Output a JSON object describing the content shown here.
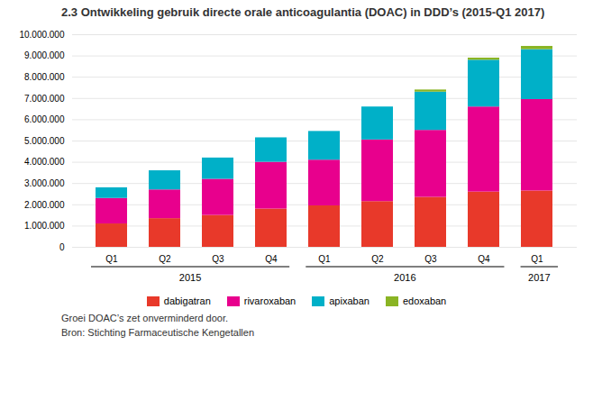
{
  "chart_data": {
    "type": "bar",
    "stacked": true,
    "title": "2.3 Ontwikkeling gebruik directe orale anticoagulantia (DOAC) in DDD’s (2015-Q1 2017)",
    "categories": [
      "Q1",
      "Q2",
      "Q3",
      "Q4",
      "Q1",
      "Q2",
      "Q3",
      "Q4",
      "Q1"
    ],
    "x_groups": [
      "2015",
      "2016",
      "2017"
    ],
    "series": [
      {
        "name": "dabigatran",
        "color": "#e8392a",
        "values": [
          1100000,
          1350000,
          1500000,
          1800000,
          1950000,
          2150000,
          2350000,
          2600000,
          2650000
        ]
      },
      {
        "name": "rivaroxaban",
        "color": "#e8008d",
        "values": [
          1200000,
          1350000,
          1700000,
          2200000,
          2150000,
          2900000,
          3150000,
          4000000,
          4300000
        ]
      },
      {
        "name": "apixaban",
        "color": "#00b0c8",
        "values": [
          500000,
          900000,
          1000000,
          1150000,
          1350000,
          1550000,
          1800000,
          2200000,
          2350000
        ]
      },
      {
        "name": "edoxaban",
        "color": "#8ab424",
        "values": [
          0,
          0,
          0,
          0,
          0,
          0,
          100000,
          100000,
          150000
        ]
      }
    ],
    "ylim": [
      0,
      10000000
    ],
    "yticks": [
      0,
      {
        "value": 1000000,
        "label": "1.000.000"
      },
      {
        "value": 2000000,
        "label": "2.000.000"
      },
      {
        "value": 3000000,
        "label": "3.000.000"
      },
      {
        "value": 4000000,
        "label": "4.000.000"
      },
      {
        "value": 5000000,
        "label": "5.000.000"
      },
      {
        "value": 6000000,
        "label": "6.000.000"
      },
      {
        "value": 7000000,
        "label": "7.000.000"
      },
      {
        "value": 8000000,
        "label": "8.000.000"
      },
      {
        "value": 9000000,
        "label": "9.000.000"
      },
      {
        "value": 10000000,
        "label": "10.000.000"
      }
    ],
    "grid": true,
    "legend": "bottom",
    "annotations": [
      "Groei DOAC’s zet onverminderd door.",
      "Bron: Stichting Farmaceutische Kengetallen"
    ]
  }
}
